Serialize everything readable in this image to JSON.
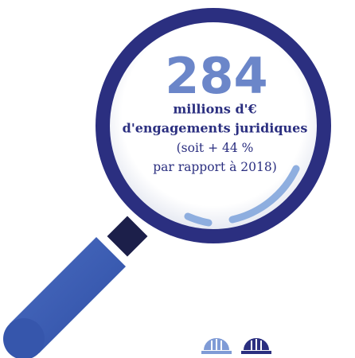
{
  "figure": {
    "value": 284,
    "unit": "millions d'€",
    "description": "d'engagements juridiques",
    "note_lines": [
      "(soit + 44 %",
      "par rapport à 2018)"
    ]
  }
}
